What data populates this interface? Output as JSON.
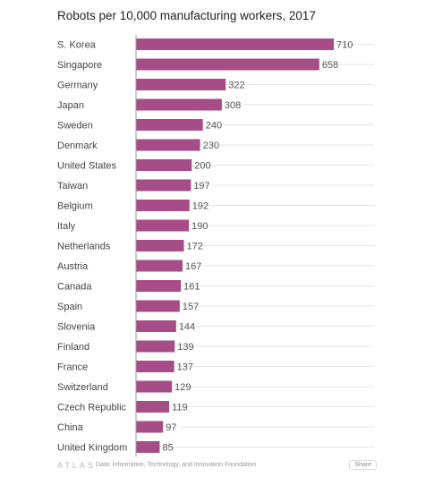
{
  "chart_data": {
    "type": "bar",
    "orientation": "horizontal",
    "title": "Robots per 10,000 manufacturing workers, 2017",
    "categories": [
      "S. Korea",
      "Singapore",
      "Germany",
      "Japan",
      "Sweden",
      "Denmark",
      "United States",
      "Taiwan",
      "Belgium",
      "Italy",
      "Netherlands",
      "Austria",
      "Canada",
      "Spain",
      "Slovenia",
      "Finland",
      "France",
      "Switzerland",
      "Czech Republic",
      "China",
      "United Kingdom"
    ],
    "values": [
      710,
      658,
      322,
      308,
      240,
      230,
      200,
      197,
      192,
      190,
      172,
      167,
      161,
      157,
      144,
      139,
      137,
      129,
      119,
      97,
      85
    ],
    "xlim": [
      0,
      710
    ],
    "grid": true,
    "legend": "none",
    "colors": {
      "bar": "#a64d87",
      "grid": "#e5e5e5",
      "label": "#444444",
      "value": "#555555",
      "axis": "#999999"
    }
  },
  "footer": {
    "brand": "ATLAS",
    "source": "Data: Information, Technology, and Innovation Foundation",
    "share_label": "Share"
  }
}
